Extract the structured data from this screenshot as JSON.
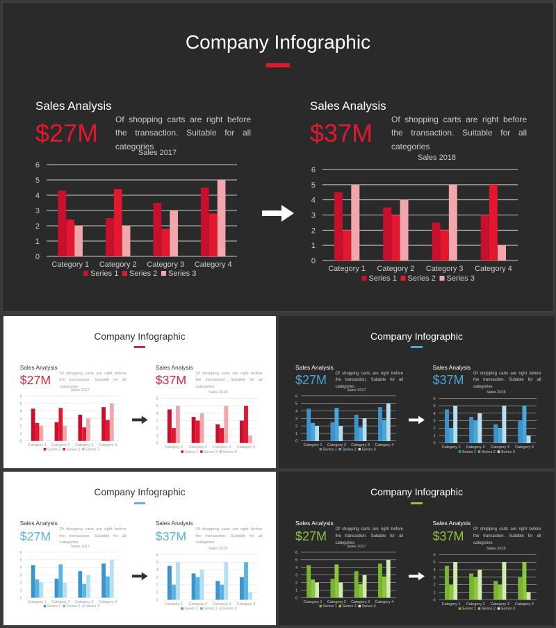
{
  "title": "Company Infographic",
  "panel_heading": "Sales Analysis",
  "description": "Of shopping carts are right before the transaction. Suitable for all categories",
  "left_panel": {
    "big_number": "$27M",
    "chart_title": "Sales 2017"
  },
  "right_panel": {
    "big_number": "$37M",
    "chart_title": "Sales 2018"
  },
  "themes": {
    "red_dark": {
      "background": "#2b2a2a",
      "text": "#ffffff",
      "muted": "#cccccc",
      "accent": "#e3172d",
      "series_colors": [
        "#c8102e",
        "#e3172d",
        "#f2a7ad"
      ],
      "grid": "#cfcfcf"
    },
    "red_light": {
      "background": "#ffffff",
      "text": "#333333",
      "muted": "#999999",
      "accent": "#d1283a",
      "series_colors": [
        "#c8102e",
        "#e3172d",
        "#f2a7ad"
      ],
      "grid": "#dddddd"
    },
    "blue_dark": {
      "background": "#2b2a2a",
      "text": "#ffffff",
      "muted": "#cccccc",
      "accent": "#4aa8d8",
      "series_colors": [
        "#3d94cc",
        "#4aa8d8",
        "#b7dff2"
      ],
      "grid": "#cfcfcf"
    },
    "blue_light": {
      "background": "#ffffff",
      "text": "#333333",
      "muted": "#999999",
      "accent": "#58b4e0",
      "series_colors": [
        "#3d94cc",
        "#58b4e0",
        "#b7dff2"
      ],
      "grid": "#dddddd"
    },
    "green_dark": {
      "background": "#2b2a2a",
      "text": "#ffffff",
      "muted": "#cccccc",
      "accent": "#8dc63f",
      "series_colors": [
        "#7ab530",
        "#8dc63f",
        "#d2ebb0"
      ],
      "grid": "#cfcfcf"
    }
  },
  "chart_data": [
    {
      "type": "bar",
      "title": "Sales 2017",
      "categories": [
        "Category 1",
        "Category 2",
        "Category 3",
        "Category 4"
      ],
      "series": [
        {
          "name": "Series 1",
          "values": [
            4.3,
            2.5,
            3.5,
            4.5
          ]
        },
        {
          "name": "Series 2",
          "values": [
            2.4,
            4.4,
            1.8,
            2.8
          ]
        },
        {
          "name": "Series 3",
          "values": [
            2,
            2,
            3,
            5
          ]
        }
      ],
      "ylim": [
        0,
        6
      ],
      "yticks": [
        0,
        1,
        2,
        3,
        4,
        5,
        6
      ],
      "grid": true,
      "legend": "bottom"
    },
    {
      "type": "bar",
      "title": "Sales 2018",
      "categories": [
        "Category 1",
        "Category 2",
        "Category 3",
        "Category 4"
      ],
      "series": [
        {
          "name": "Series 1",
          "values": [
            4.5,
            3.5,
            2.5,
            3
          ]
        },
        {
          "name": "Series 2",
          "values": [
            2,
            3,
            2,
            5
          ]
        },
        {
          "name": "Series 3",
          "values": [
            5,
            4,
            5,
            1
          ]
        }
      ],
      "ylim": [
        0,
        6
      ],
      "yticks": [
        0,
        1,
        2,
        3,
        4,
        5,
        6
      ],
      "grid": true,
      "legend": "bottom"
    }
  ]
}
